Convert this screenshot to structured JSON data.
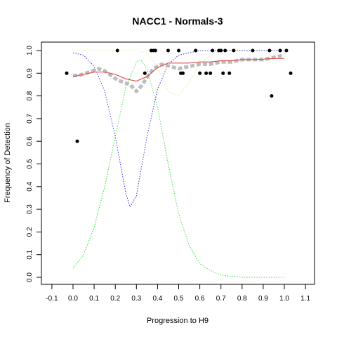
{
  "chart_data": {
    "type": "scatter",
    "title": "NACC1 - Normals-3",
    "xlabel": "Progression to H9",
    "ylabel": "Frequency of Detection",
    "xlim": [
      -0.1,
      1.1
    ],
    "ylim": [
      0.0,
      1.0
    ],
    "x_ticks": [
      "-0.1",
      "0.0",
      "0.1",
      "0.2",
      "0.3",
      "0.4",
      "0.5",
      "0.6",
      "0.7",
      "0.8",
      "0.9",
      "1.0",
      "1.1"
    ],
    "y_ticks": [
      "0.0",
      "0.1",
      "0.2",
      "0.3",
      "0.4",
      "0.5",
      "0.6",
      "0.7",
      "0.8",
      "0.9",
      "1.0"
    ],
    "grid": false,
    "legend": "none",
    "colors": {
      "points": "#000000",
      "smoothed": "#bdbdbd",
      "fit": "#e05050",
      "blue_curve": "#3333dd",
      "green_curve": "#33dd33",
      "yellow_curve": "#eeeeaa"
    },
    "series": [
      {
        "style": "points",
        "x": [
          -0.03,
          0.02,
          0.21,
          0.34,
          0.37,
          0.38,
          0.39,
          0.45,
          0.5,
          0.51,
          0.52,
          0.58,
          0.6,
          0.63,
          0.65,
          0.66,
          0.69,
          0.7,
          0.71,
          0.72,
          0.74,
          0.76,
          0.85,
          0.93,
          0.94,
          0.98,
          1.01,
          1.03
        ],
        "y": [
          0.9,
          0.6,
          1.0,
          0.9,
          1.0,
          1.0,
          1.0,
          1.0,
          1.0,
          0.9,
          0.9,
          1.0,
          0.9,
          0.9,
          0.9,
          1.0,
          1.0,
          1.0,
          0.9,
          1.0,
          0.9,
          1.0,
          1.0,
          1.0,
          0.8,
          1.0,
          1.0,
          0.9
        ]
      },
      {
        "style": "smoothed",
        "x": [
          0.0,
          0.03,
          0.06,
          0.09,
          0.12,
          0.15,
          0.18,
          0.21,
          0.24,
          0.27,
          0.3,
          0.32,
          0.35,
          0.38,
          0.42,
          0.46,
          0.5,
          0.55,
          0.6,
          0.65,
          0.7,
          0.75,
          0.8,
          0.85,
          0.9,
          0.95,
          1.0
        ],
        "y": [
          0.89,
          0.89,
          0.9,
          0.91,
          0.92,
          0.91,
          0.89,
          0.87,
          0.86,
          0.85,
          0.82,
          0.84,
          0.88,
          0.92,
          0.94,
          0.93,
          0.92,
          0.93,
          0.94,
          0.94,
          0.95,
          0.95,
          0.96,
          0.96,
          0.96,
          0.97,
          0.98
        ]
      },
      {
        "style": "fit",
        "x": [
          0.0,
          0.05,
          0.1,
          0.15,
          0.2,
          0.25,
          0.3,
          0.35,
          0.4,
          0.45,
          0.5,
          0.55,
          0.6,
          0.65,
          0.7,
          0.75,
          0.8,
          0.85,
          0.9,
          0.95,
          1.0
        ],
        "y": [
          0.885,
          0.895,
          0.905,
          0.905,
          0.895,
          0.875,
          0.865,
          0.885,
          0.925,
          0.945,
          0.945,
          0.945,
          0.95,
          0.95,
          0.955,
          0.955,
          0.96,
          0.96,
          0.962,
          0.965,
          0.965
        ]
      },
      {
        "style": "blue_curve",
        "x": [
          0.0,
          0.05,
          0.1,
          0.15,
          0.2,
          0.25,
          0.27,
          0.3,
          0.35,
          0.4,
          0.45,
          0.5,
          0.55,
          0.6,
          0.65,
          0.7,
          0.8,
          0.9,
          1.0
        ],
        "y": [
          0.99,
          0.98,
          0.93,
          0.82,
          0.62,
          0.37,
          0.31,
          0.36,
          0.62,
          0.83,
          0.94,
          0.98,
          0.99,
          1.0,
          1.0,
          1.0,
          1.0,
          1.0,
          1.0
        ]
      },
      {
        "style": "green_curve",
        "x": [
          0.0,
          0.05,
          0.1,
          0.15,
          0.2,
          0.25,
          0.3,
          0.32,
          0.35,
          0.4,
          0.45,
          0.5,
          0.55,
          0.6,
          0.65,
          0.7,
          0.8,
          0.9,
          1.0
        ],
        "y": [
          0.04,
          0.1,
          0.22,
          0.4,
          0.62,
          0.84,
          0.95,
          0.96,
          0.92,
          0.75,
          0.5,
          0.28,
          0.14,
          0.06,
          0.03,
          0.01,
          0.0,
          0.0,
          0.0
        ]
      },
      {
        "style": "yellow_curve",
        "x": [
          0.0,
          0.05,
          0.1,
          0.15,
          0.2,
          0.25,
          0.3,
          0.35,
          0.4,
          0.45,
          0.5,
          0.55,
          0.6,
          0.65,
          0.7,
          0.8,
          0.9,
          1.0
        ],
        "y": [
          1.0,
          1.0,
          1.0,
          1.0,
          1.0,
          1.0,
          1.0,
          0.99,
          0.93,
          0.82,
          0.8,
          0.86,
          0.94,
          0.98,
          1.0,
          1.0,
          1.0,
          1.0
        ]
      }
    ]
  }
}
